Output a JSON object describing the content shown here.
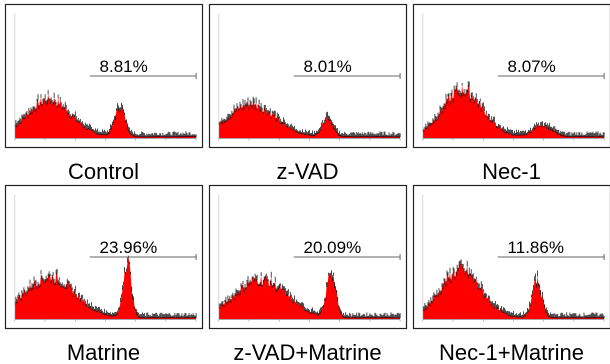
{
  "chart_data": [
    {
      "type": "area",
      "label": "Control",
      "value": "8.81%",
      "peaks": [
        {
          "x": 0.19,
          "h": 0.32,
          "w": 0.12
        },
        {
          "x": 0.58,
          "h": 0.26,
          "w": 0.028
        }
      ]
    },
    {
      "type": "area",
      "label": "z-VAD",
      "value": "8.01%",
      "peaks": [
        {
          "x": 0.18,
          "h": 0.28,
          "w": 0.13
        },
        {
          "x": 0.6,
          "h": 0.17,
          "w": 0.028
        }
      ]
    },
    {
      "type": "area",
      "label": "Nec-1",
      "value": "8.07%",
      "peaks": [
        {
          "x": 0.22,
          "h": 0.4,
          "w": 0.11
        },
        {
          "x": 0.66,
          "h": 0.1,
          "w": 0.05
        }
      ]
    },
    {
      "type": "area",
      "label": "Matrine",
      "value": "23.96%",
      "peaks": [
        {
          "x": 0.19,
          "h": 0.35,
          "w": 0.14
        },
        {
          "x": 0.62,
          "h": 0.5,
          "w": 0.022
        }
      ]
    },
    {
      "type": "area",
      "label": "z-VAD+Matrine",
      "value": "20.09%",
      "peaks": [
        {
          "x": 0.23,
          "h": 0.33,
          "w": 0.14
        },
        {
          "x": 0.62,
          "h": 0.4,
          "w": 0.024
        }
      ]
    },
    {
      "type": "area",
      "label": "Nec-1+Matrine",
      "value": "11.86%",
      "peaks": [
        {
          "x": 0.21,
          "h": 0.41,
          "w": 0.11
        },
        {
          "x": 0.63,
          "h": 0.32,
          "w": 0.026
        }
      ]
    }
  ],
  "colors": {
    "fill": "#ff0000",
    "noise": "#000000",
    "frame": "#222222",
    "marker": "#666666"
  }
}
